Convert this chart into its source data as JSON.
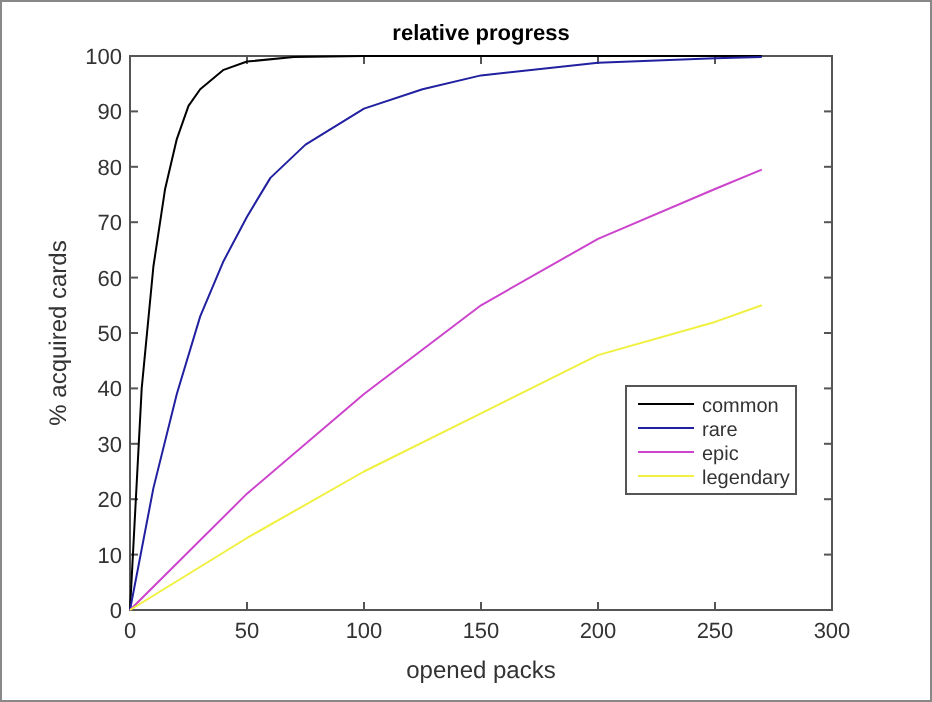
{
  "chart_data": {
    "type": "line",
    "title": "relative progress",
    "xlabel": "opened packs",
    "ylabel": "% acquired cards",
    "xlim": [
      0,
      300
    ],
    "xticks": [
      0,
      50,
      100,
      150,
      200,
      250,
      300
    ],
    "ylim": [
      0,
      100
    ],
    "yticks": [
      0,
      10,
      20,
      30,
      40,
      50,
      60,
      70,
      80,
      90,
      100
    ],
    "grid": false,
    "legend": "bottom right",
    "marker": "none",
    "line_style": "solid",
    "series": [
      {
        "name": "common",
        "color": "#000000",
        "x": [
          0,
          5,
          10,
          15,
          20,
          25,
          30,
          40,
          50,
          70,
          100,
          270
        ],
        "values": [
          0,
          40,
          62,
          76,
          85,
          91,
          94,
          97.5,
          99,
          99.8,
          100,
          100
        ]
      },
      {
        "name": "rare",
        "color": "#2020a0",
        "x": [
          0,
          10,
          20,
          30,
          40,
          50,
          60,
          75,
          100,
          125,
          150,
          200,
          250,
          270
        ],
        "values": [
          0,
          22,
          39,
          53,
          63,
          71,
          78,
          84,
          90.5,
          94,
          96.5,
          98.8,
          99.6,
          99.8
        ]
      },
      {
        "name": "epic",
        "color": "#cc44cc",
        "x": [
          0,
          50,
          100,
          150,
          200,
          250,
          270
        ],
        "values": [
          0,
          21,
          39,
          55,
          67,
          76,
          79.5
        ]
      },
      {
        "name": "legendary",
        "color": "#f0f040",
        "x": [
          0,
          50,
          100,
          150,
          200,
          250,
          270
        ],
        "values": [
          0,
          13,
          25,
          35.5,
          46,
          52,
          55
        ]
      }
    ]
  }
}
